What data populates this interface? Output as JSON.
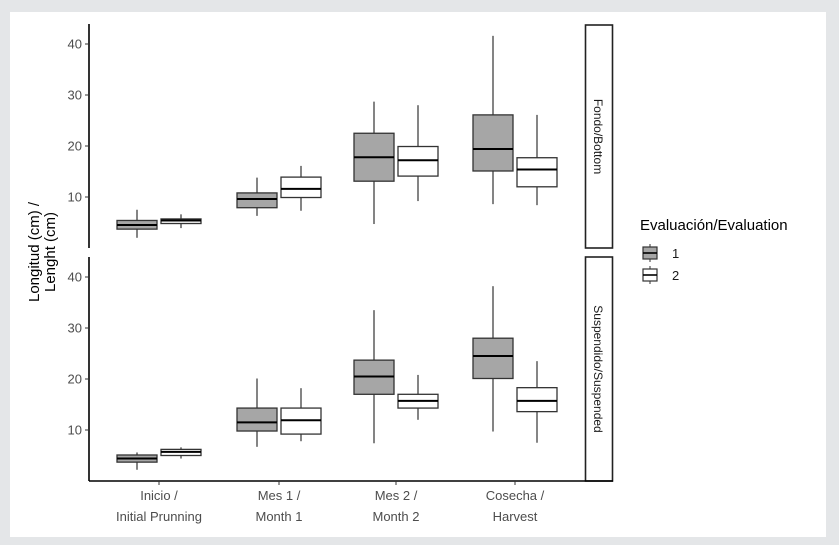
{
  "chart_data": {
    "type": "boxplot",
    "ylabel_line1": "Longitud (cm) /",
    "ylabel_line2": "Lenght (cm)",
    "ylim": [
      0.5,
      44
    ],
    "yticks": [
      10,
      20,
      30,
      40
    ],
    "ytick_labels": [
      "10",
      "20",
      "30",
      "40"
    ],
    "categories": [
      {
        "line1": "Inicio /",
        "line2": "Initial Prunning"
      },
      {
        "line1": "Mes 1 /",
        "line2": "Month 1"
      },
      {
        "line1": "Mes 2 /",
        "line2": "Month 2"
      },
      {
        "line1": "Cosecha /",
        "line2": "Harvest"
      }
    ],
    "legend": {
      "title": "Evaluación/Evaluation",
      "position": "right",
      "entries": [
        {
          "label": "1",
          "fill": "#a6a6a6"
        },
        {
          "label": "2",
          "fill": "#ffffff"
        }
      ]
    },
    "panels": [
      {
        "strip": "Fondo/Bottom",
        "series": [
          {
            "name": "1",
            "boxes": [
              {
                "whisker_low": 2.0,
                "q1": 3.7,
                "median": 4.5,
                "q3": 5.4,
                "whisker_high": 7.5
              },
              {
                "whisker_low": 6.3,
                "q1": 7.9,
                "median": 9.6,
                "q3": 10.8,
                "whisker_high": 13.8
              },
              {
                "whisker_low": 4.7,
                "q1": 13.1,
                "median": 17.8,
                "q3": 22.5,
                "whisker_high": 28.7
              },
              {
                "whisker_low": 8.6,
                "q1": 15.1,
                "median": 19.4,
                "q3": 26.1,
                "whisker_high": 41.6
              }
            ]
          },
          {
            "name": "2",
            "boxes": [
              {
                "whisker_low": 3.9,
                "q1": 4.8,
                "median": 5.4,
                "q3": 5.7,
                "whisker_high": 6.6
              },
              {
                "whisker_low": 7.3,
                "q1": 9.9,
                "median": 11.6,
                "q3": 13.9,
                "whisker_high": 16.1
              },
              {
                "whisker_low": 9.2,
                "q1": 14.1,
                "median": 17.2,
                "q3": 19.9,
                "whisker_high": 28.0
              },
              {
                "whisker_low": 8.4,
                "q1": 12.0,
                "median": 15.4,
                "q3": 17.7,
                "whisker_high": 26.1
              }
            ]
          }
        ]
      },
      {
        "strip": "Suspendido/Suspended",
        "series": [
          {
            "name": "1",
            "boxes": [
              {
                "whisker_low": 2.2,
                "q1": 3.7,
                "median": 4.4,
                "q3": 5.1,
                "whisker_high": 5.6
              },
              {
                "whisker_low": 6.7,
                "q1": 9.8,
                "median": 11.5,
                "q3": 14.3,
                "whisker_high": 20.1
              },
              {
                "whisker_low": 7.4,
                "q1": 17.0,
                "median": 20.5,
                "q3": 23.7,
                "whisker_high": 33.5
              },
              {
                "whisker_low": 9.7,
                "q1": 20.1,
                "median": 24.5,
                "q3": 28.0,
                "whisker_high": 38.2
              }
            ]
          },
          {
            "name": "2",
            "boxes": [
              {
                "whisker_low": 4.4,
                "q1": 5.0,
                "median": 5.7,
                "q3": 6.2,
                "whisker_high": 6.6
              },
              {
                "whisker_low": 7.8,
                "q1": 9.2,
                "median": 11.9,
                "q3": 14.3,
                "whisker_high": 18.2
              },
              {
                "whisker_low": 12.0,
                "q1": 14.3,
                "median": 15.7,
                "q3": 17.0,
                "whisker_high": 20.8
              },
              {
                "whisker_low": 7.5,
                "q1": 13.6,
                "median": 15.7,
                "q3": 18.3,
                "whisker_high": 23.5
              }
            ]
          }
        ]
      }
    ]
  }
}
